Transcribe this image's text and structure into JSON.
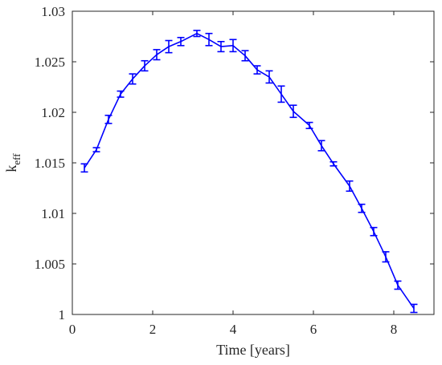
{
  "chart_data": {
    "type": "line",
    "title": "",
    "xlabel": "Time [years]",
    "ylabel_main": "k",
    "ylabel_sub": "eff",
    "xlim": [
      0,
      9
    ],
    "ylim": [
      1.0,
      1.03
    ],
    "xticks": [
      0,
      2,
      4,
      6,
      8
    ],
    "yticks": [
      1.0,
      1.005,
      1.01,
      1.015,
      1.02,
      1.025,
      1.03
    ],
    "xtick_labels": [
      "0",
      "2",
      "4",
      "6",
      "8"
    ],
    "ytick_labels": [
      "1",
      "1.005",
      "1.01",
      "1.015",
      "1.02",
      "1.025",
      "1.03"
    ],
    "grid": false,
    "series": [
      {
        "color": "#0000ff",
        "x": [
          0.3,
          0.6,
          0.9,
          1.2,
          1.5,
          1.8,
          2.1,
          2.4,
          2.7,
          3.1,
          3.4,
          3.7,
          4.0,
          4.3,
          4.6,
          4.9,
          5.2,
          5.5,
          5.9,
          6.2,
          6.5,
          6.9,
          7.2,
          7.5,
          7.8,
          8.1,
          8.5
        ],
        "y": [
          1.0145,
          1.0163,
          1.0193,
          1.0218,
          1.0233,
          1.0246,
          1.0257,
          1.0265,
          1.027,
          1.0278,
          1.0272,
          1.0265,
          1.0266,
          1.0256,
          1.0242,
          1.0235,
          1.0218,
          1.0201,
          1.0187,
          1.0167,
          1.0149,
          1.0127,
          1.0105,
          1.0082,
          1.0057,
          1.0029,
          1.0006
        ],
        "err": [
          0.0004,
          0.0002,
          0.0004,
          0.0003,
          0.0005,
          0.0005,
          0.0005,
          0.0006,
          0.0004,
          0.0003,
          0.0006,
          0.0005,
          0.0006,
          0.0005,
          0.0004,
          0.0006,
          0.0008,
          0.0006,
          0.0003,
          0.0005,
          0.0002,
          0.0005,
          0.0004,
          0.0004,
          0.0005,
          0.0004,
          0.0004
        ]
      }
    ]
  }
}
